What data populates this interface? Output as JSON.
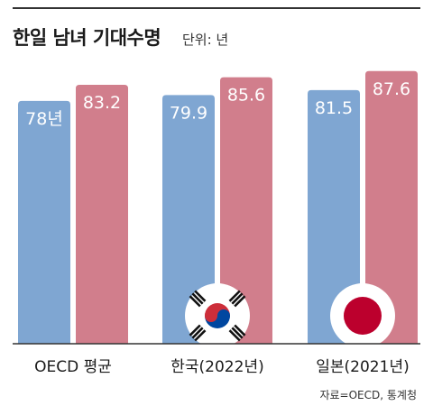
{
  "title": "한일 남녀 기대수명",
  "unit_label": "단위: 년",
  "source": "자료=OECD, 통계청",
  "colors": {
    "male": "#7fa6d2",
    "female": "#d17e8c",
    "axis": "#333333",
    "label_text": "#ffffff"
  },
  "chart_data": {
    "type": "bar",
    "categories": [
      "OECD 평균",
      "한국(2022년)",
      "일본(2021년)"
    ],
    "series": [
      {
        "values": [
          78,
          79.9,
          81.5
        ],
        "labels": [
          "78년",
          "79.9",
          "81.5"
        ]
      },
      {
        "values": [
          83.2,
          85.6,
          87.6
        ],
        "labels": [
          "83.2",
          "85.6",
          "87.6"
        ]
      }
    ],
    "ylim": [
      0,
      90
    ],
    "grid": false,
    "legend": "none",
    "flags": [
      "",
      "korea-flag-icon",
      "japan-flag-icon"
    ]
  }
}
